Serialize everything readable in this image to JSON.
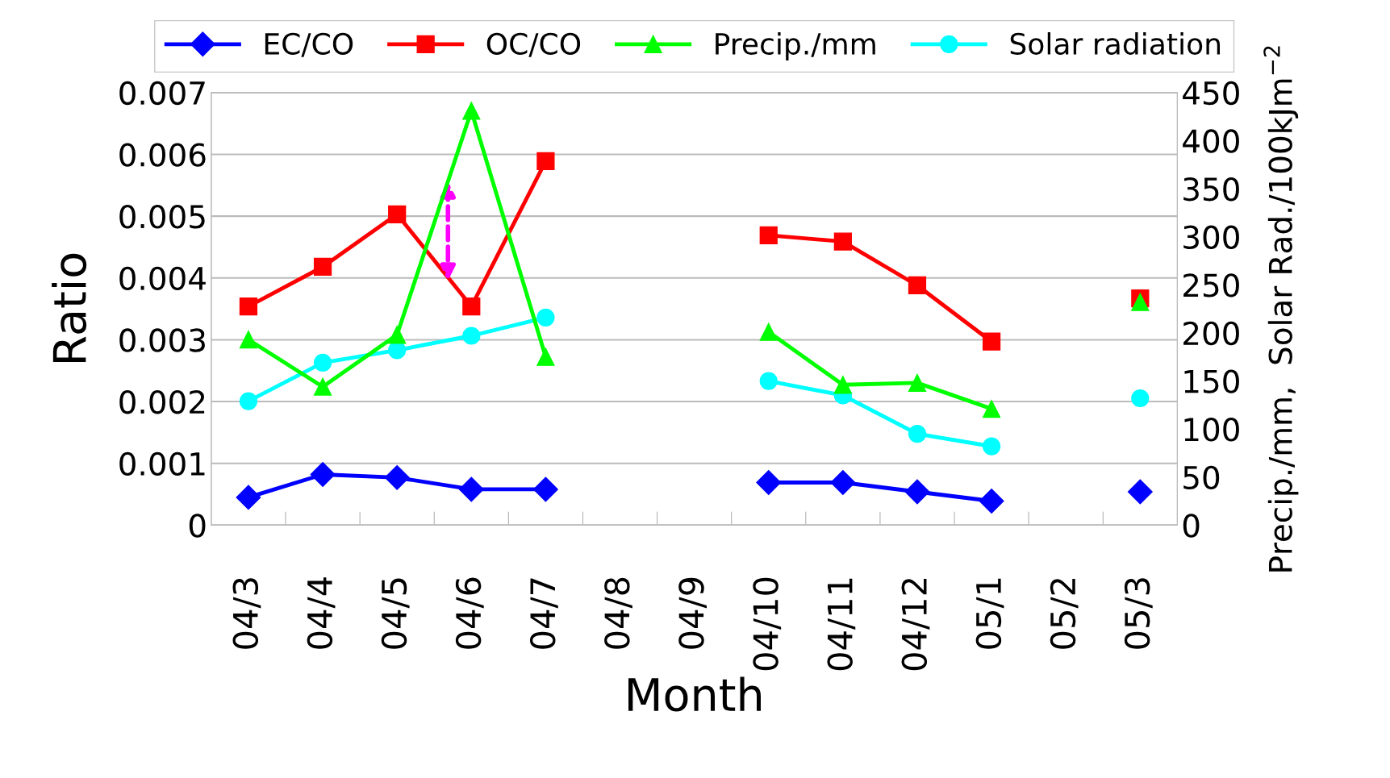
{
  "chart_data": {
    "type": "line",
    "xlabel": "Month",
    "ylabel": "Ratio",
    "y2label": "Precip./mm,  Solar Rad./100kJm$^{−2}$",
    "categories": [
      "04/3",
      "04/4",
      "04/5",
      "04/6",
      "04/7",
      "04/8",
      "04/9",
      "04/10",
      "04/11",
      "04/12",
      "05/1",
      "05/2",
      "05/3"
    ],
    "series": [
      {
        "name": "EC/CO",
        "color": "#0000ff",
        "marker": "diamond",
        "values": [
          0.00045,
          0.00082,
          0.00077,
          0.00058,
          0.00058,
          null,
          null,
          0.00069,
          0.00069,
          0.00054,
          0.00039,
          null,
          0.00054
        ]
      },
      {
        "name": "OC/CO",
        "color": "#ff0000",
        "marker": "square",
        "values": [
          0.00354,
          0.00418,
          0.00503,
          0.00354,
          0.00589,
          null,
          null,
          0.00469,
          0.00459,
          0.00388,
          0.00297,
          null,
          0.00367
        ]
      },
      {
        "name": "Precip./mm",
        "color": "#00ff00",
        "marker": "triangle",
        "axis": "y2",
        "values": [
          193,
          144,
          198,
          431,
          175,
          null,
          null,
          201,
          146,
          148,
          121,
          null,
          232
        ]
      },
      {
        "name": "Solar radiation",
        "color": "#00ffff",
        "marker": "circle",
        "axis": "y2",
        "values": [
          129,
          169,
          182,
          197,
          216,
          null,
          null,
          150,
          135,
          95,
          82,
          null,
          132
        ]
      }
    ],
    "ylim": [
      0,
      0.007
    ],
    "yticks": [
      0,
      0.001,
      0.002,
      0.003,
      0.004,
      0.005,
      0.006,
      0.007
    ],
    "y2lim": [
      0,
      450
    ],
    "y2ticks": [
      0,
      50,
      100,
      150,
      200,
      250,
      300,
      350,
      400,
      450
    ],
    "grid": "y",
    "legend": "top",
    "line_style": "solid"
  }
}
